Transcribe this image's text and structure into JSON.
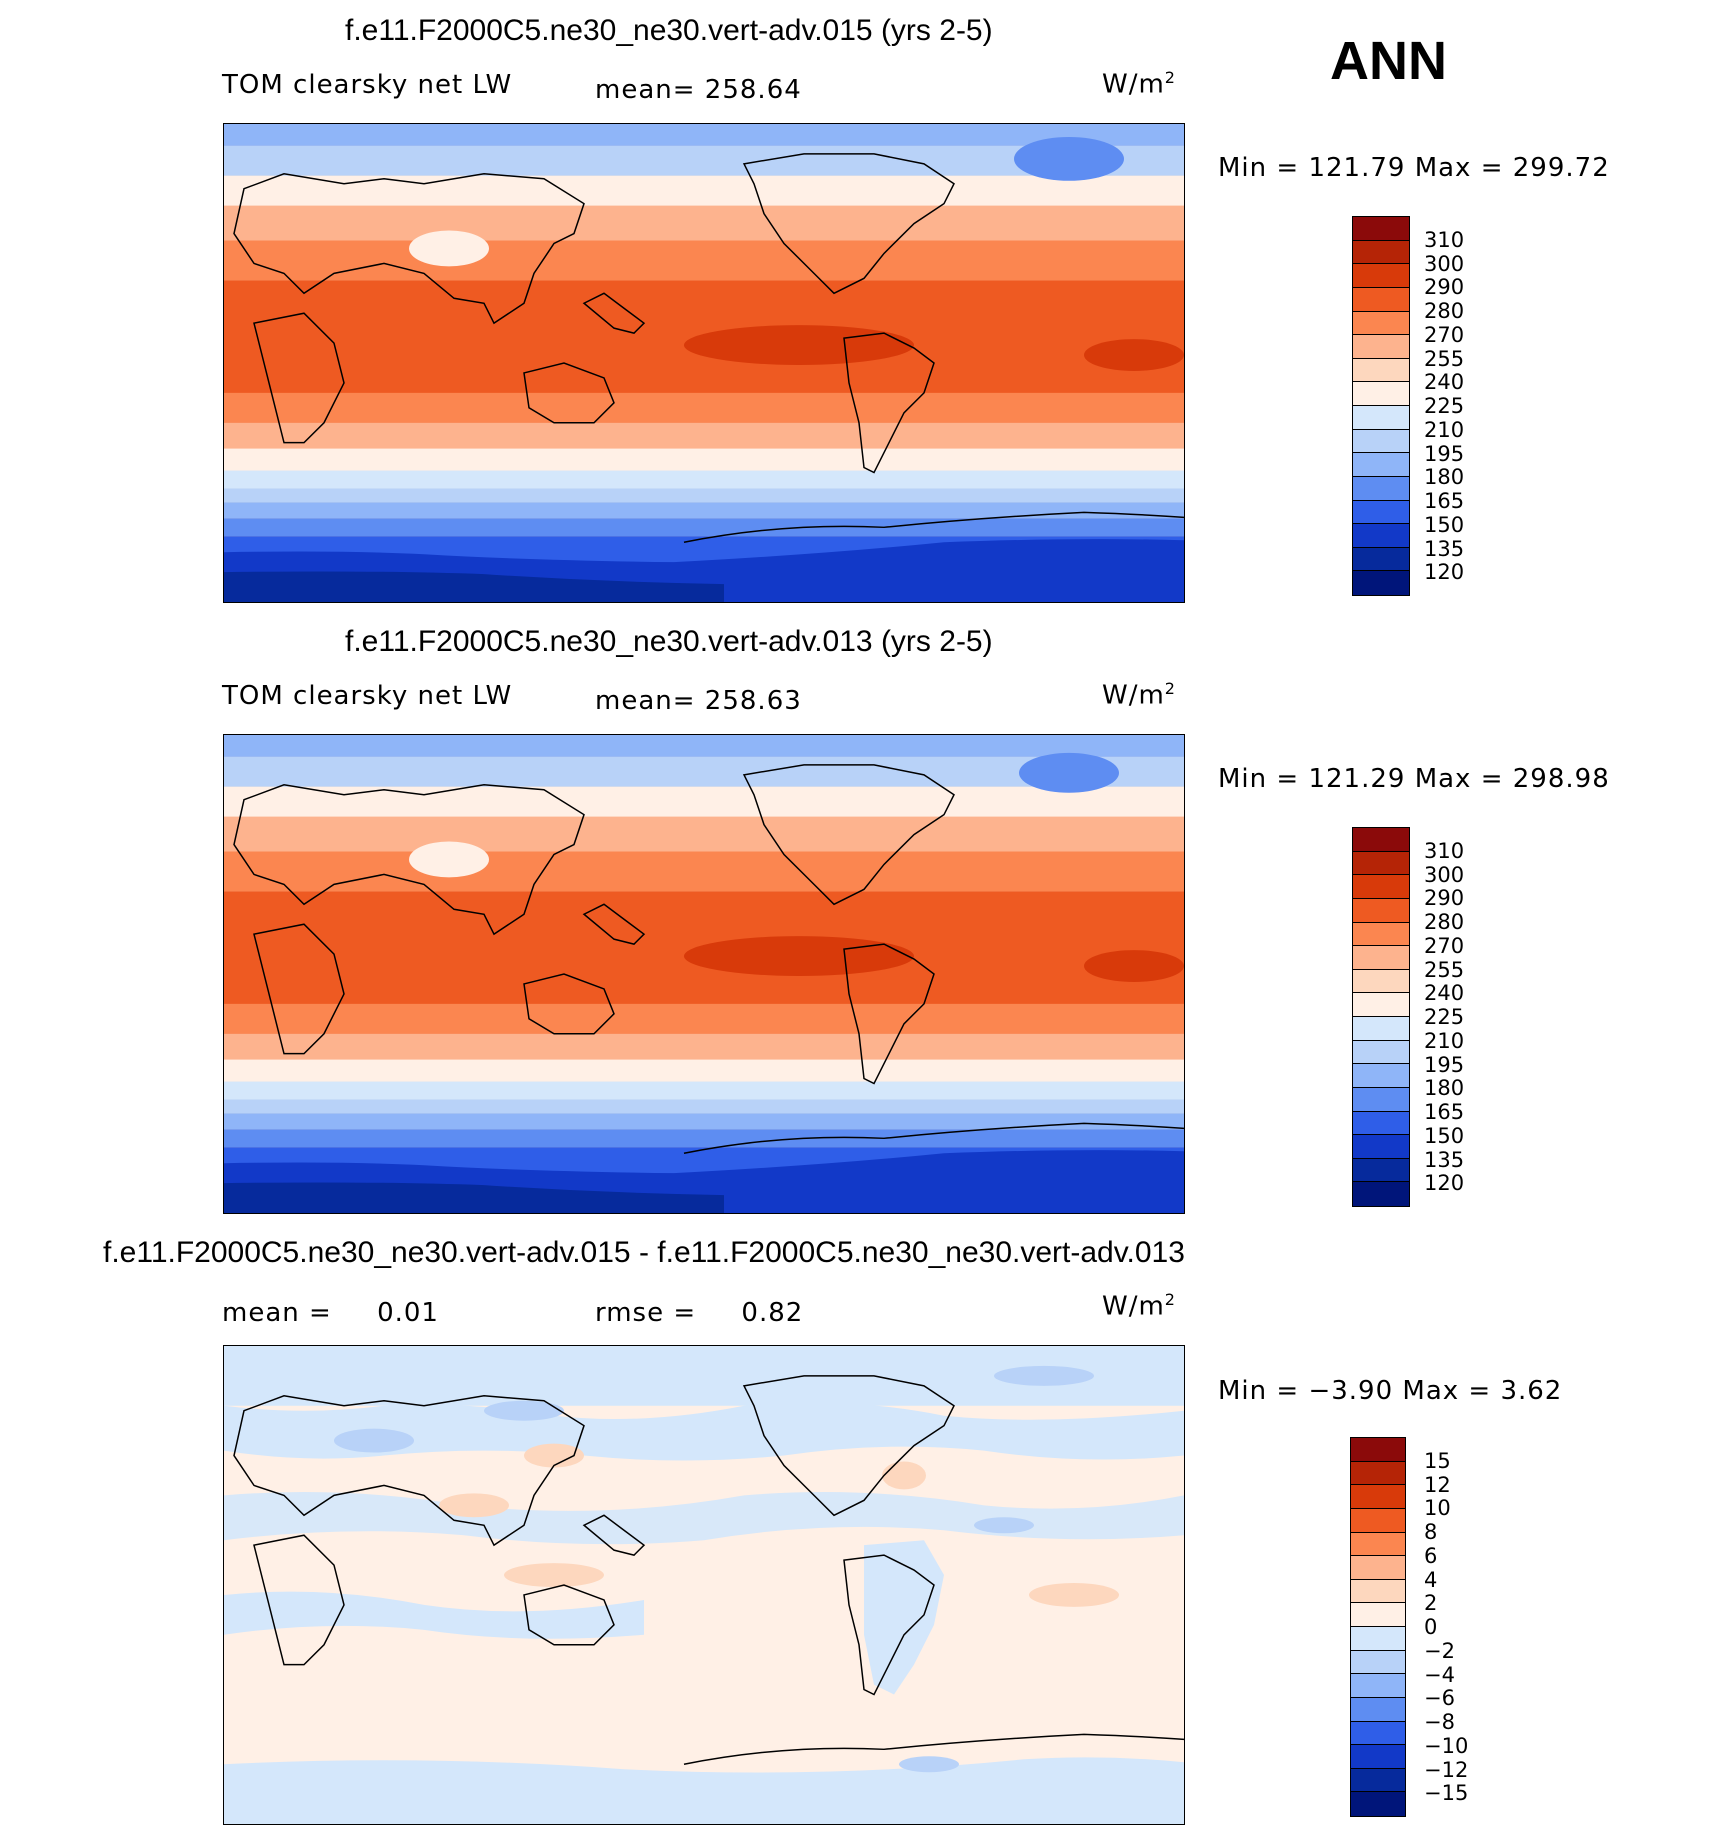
{
  "season": "ANN",
  "units": "W/m",
  "units_sup": "2",
  "panels": [
    {
      "title": "f.e11.F2000C5.ne30_ne30.vert-adv.015 (yrs 2-5)",
      "variable": "TOM clearsky net LW",
      "mean_label": "mean=",
      "mean_value": "258.64",
      "minmax": "Min = 121.79 Max = 299.72",
      "colorbar": {
        "levels": [
          "310",
          "300",
          "290",
          "280",
          "270",
          "255",
          "240",
          "225",
          "210",
          "195",
          "180",
          "165",
          "150",
          "135",
          "120"
        ],
        "colors": [
          "#8b0a0a",
          "#b52406",
          "#d83a0a",
          "#ee5a22",
          "#fb8650",
          "#fdb38e",
          "#fdd7be",
          "#fff0e6",
          "#d4e7fb",
          "#b8d2f8",
          "#8fb5f8",
          "#5e8df2",
          "#2f5ee8",
          "#1239c8",
          "#062a9c",
          "#00157a"
        ]
      }
    },
    {
      "title": "f.e11.F2000C5.ne30_ne30.vert-adv.013 (yrs 2-5)",
      "variable": "TOM clearsky net LW",
      "mean_label": "mean=",
      "mean_value": "258.63",
      "minmax": "Min = 121.29 Max = 298.98",
      "colorbar": {
        "levels": [
          "310",
          "300",
          "290",
          "280",
          "270",
          "255",
          "240",
          "225",
          "210",
          "195",
          "180",
          "165",
          "150",
          "135",
          "120"
        ],
        "colors": [
          "#8b0a0a",
          "#b52406",
          "#d83a0a",
          "#ee5a22",
          "#fb8650",
          "#fdb38e",
          "#fdd7be",
          "#fff0e6",
          "#d4e7fb",
          "#b8d2f8",
          "#8fb5f8",
          "#5e8df2",
          "#2f5ee8",
          "#1239c8",
          "#062a9c",
          "#00157a"
        ]
      }
    },
    {
      "title": "f.e11.F2000C5.ne30_ne30.vert-adv.015 - f.e11.F2000C5.ne30_ne30.vert-adv.013",
      "mean_label": "mean =",
      "mean_value": "0.01",
      "rmse_label": "rmse =",
      "rmse_value": "0.82",
      "minmax": "Min = −3.90 Max = 3.62",
      "colorbar": {
        "levels": [
          "15",
          "12",
          "10",
          "8",
          "6",
          "4",
          "2",
          "0",
          "−2",
          "−4",
          "−6",
          "−8",
          "−10",
          "−12",
          "−15"
        ],
        "colors": [
          "#8b0a0a",
          "#b52406",
          "#d83a0a",
          "#ee5a22",
          "#fb8650",
          "#fdb38e",
          "#fdd7be",
          "#fff0e6",
          "#d4e7fb",
          "#b8d2f8",
          "#8fb5f8",
          "#5e8df2",
          "#2f5ee8",
          "#1239c8",
          "#062a9c",
          "#00157a"
        ]
      }
    }
  ]
}
